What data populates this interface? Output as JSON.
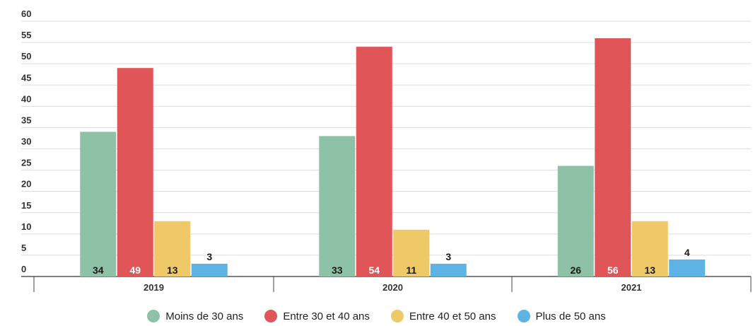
{
  "chart_data": {
    "type": "bar",
    "categories": [
      "2019",
      "2020",
      "2021"
    ],
    "series": [
      {
        "name": "Moins de 30 ans",
        "values": [
          34,
          33,
          26
        ],
        "color": "#8dc2a6"
      },
      {
        "name": "Entre 30 et 40 ans",
        "values": [
          49,
          54,
          56
        ],
        "color": "#e05558"
      },
      {
        "name": "Entre 40 et 50 ans",
        "values": [
          13,
          11,
          13
        ],
        "color": "#efc967"
      },
      {
        "name": "Plus de 50 ans",
        "values": [
          3,
          3,
          4
        ],
        "color": "#5db4e4"
      }
    ],
    "yticks": [
      0,
      5,
      10,
      15,
      20,
      25,
      30,
      35,
      40,
      45,
      50,
      55,
      60
    ],
    "ylim": [
      0,
      60
    ],
    "grid": true,
    "legend_position": "bottom-center",
    "title": "",
    "xlabel": "",
    "ylabel": ""
  }
}
